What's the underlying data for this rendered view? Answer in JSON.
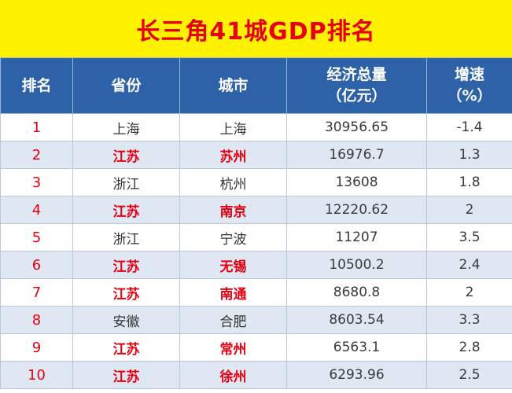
{
  "title": "长三角41城GDP排名",
  "headers": {
    "rank": "排名",
    "province": "省份",
    "city": "城市",
    "gdp_line1": "经济总量",
    "gdp_line2": "（亿元）",
    "growth_line1": "增速",
    "growth_line2": "（%）"
  },
  "colors": {
    "title_bg": "#fff200",
    "title_text": "#e60012",
    "header_bg": "#2e62a8",
    "highlight": "#e60012",
    "alt_row": "#dfe7f3"
  },
  "rows": [
    {
      "rank": "1",
      "province": "上海",
      "city": "上海",
      "gdp": "30956.65",
      "growth": "-1.4",
      "highlight": false
    },
    {
      "rank": "2",
      "province": "江苏",
      "city": "苏州",
      "gdp": "16976.7",
      "growth": "1.3",
      "highlight": true
    },
    {
      "rank": "3",
      "province": "浙江",
      "city": "杭州",
      "gdp": "13608",
      "growth": "1.8",
      "highlight": false
    },
    {
      "rank": "4",
      "province": "江苏",
      "city": "南京",
      "gdp": "12220.62",
      "growth": "2",
      "highlight": true
    },
    {
      "rank": "5",
      "province": "浙江",
      "city": "宁波",
      "gdp": "11207",
      "growth": "3.5",
      "highlight": false
    },
    {
      "rank": "6",
      "province": "江苏",
      "city": "无锡",
      "gdp": "10500.2",
      "growth": "2.4",
      "highlight": true
    },
    {
      "rank": "7",
      "province": "江苏",
      "city": "南通",
      "gdp": "8680.8",
      "growth": "2",
      "highlight": true
    },
    {
      "rank": "8",
      "province": "安徽",
      "city": "合肥",
      "gdp": "8603.54",
      "growth": "3.3",
      "highlight": false
    },
    {
      "rank": "9",
      "province": "江苏",
      "city": "常州",
      "gdp": "6563.1",
      "growth": "2.8",
      "highlight": true
    },
    {
      "rank": "10",
      "province": "江苏",
      "city": "徐州",
      "gdp": "6293.96",
      "growth": "2.5",
      "highlight": true
    }
  ]
}
